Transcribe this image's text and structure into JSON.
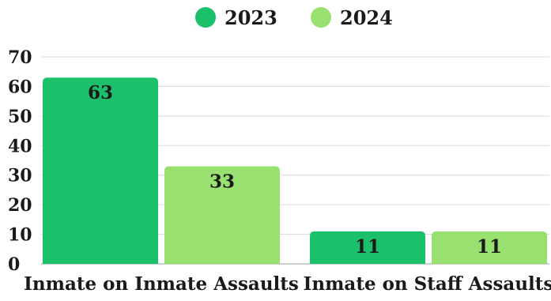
{
  "chart_data": {
    "type": "bar",
    "categories": [
      "Inmate on Inmate Assaults",
      "Inmate on Staff Assaults"
    ],
    "series": [
      {
        "name": "2023",
        "values": [
          63,
          11
        ],
        "color": "#1cc06b"
      },
      {
        "name": "2024",
        "values": [
          33,
          11
        ],
        "color": "#98e070"
      }
    ],
    "ylim": [
      0,
      70
    ],
    "yticks": [
      0,
      10,
      20,
      30,
      40,
      50,
      60,
      70
    ],
    "grid": true,
    "legend": "top-center",
    "data_labels": true
  }
}
